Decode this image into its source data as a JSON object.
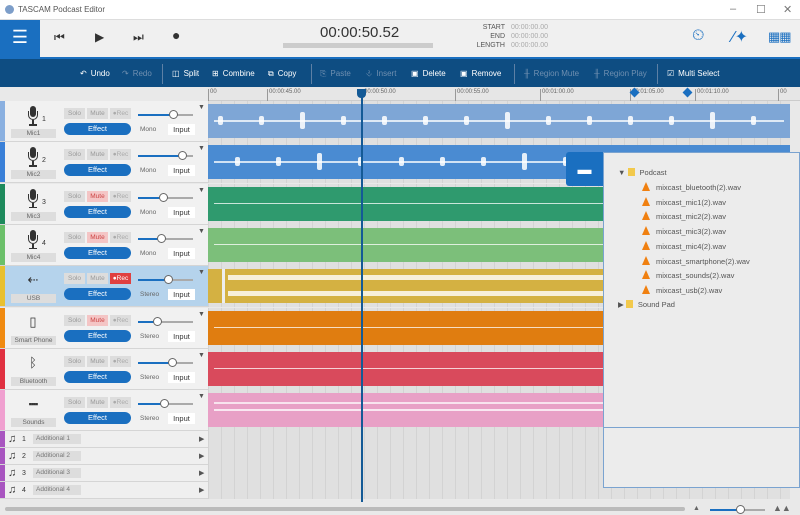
{
  "window": {
    "title": "TASCAM Podcast Editor",
    "minimize": "–",
    "maximize": "☐",
    "close": "✕"
  },
  "transport": {
    "time": "00:00:50.52",
    "start_label": "START",
    "end_label": "END",
    "length_label": "LENGTH",
    "start": "00:00:00.00",
    "end": "00:00:00.00",
    "length": "00:00:00.00"
  },
  "toolbar": {
    "undo": "Undo",
    "redo": "Redo",
    "split": "Split",
    "combine": "Combine",
    "copy": "Copy",
    "paste": "Paste",
    "insert": "Insert",
    "delete": "Delete",
    "remove": "Remove",
    "region_mute": "Region Mute",
    "region_play": "Region Play",
    "multi_select": "Multi Select"
  },
  "ruler": [
    "00",
    "00:00:45.00",
    "00:00:50.00",
    "00:00:55.00",
    "00:01:00.00",
    "00:01:05.00",
    "00:01:10.00",
    "00"
  ],
  "labels": {
    "solo": "Solo",
    "mute": "Mute",
    "rec": "●Rec",
    "effect": "Effect",
    "input": "Input"
  },
  "tracks": [
    {
      "name": "Mic1",
      "num": "1",
      "icon": "mic",
      "mode": "Mono",
      "volume": 0.64,
      "mute": false,
      "rec": false,
      "color": "#7ea6d6",
      "stripe": "#8ab0e0",
      "clip": true
    },
    {
      "name": "Mic2",
      "num": "2",
      "icon": "mic",
      "mode": "Mono",
      "volume": 0.8,
      "mute": false,
      "rec": false,
      "color": "#4a8bd2",
      "stripe": "#3a80d8",
      "clip": true
    },
    {
      "name": "Mic3",
      "num": "3",
      "icon": "mic",
      "mode": "Mono",
      "volume": 0.45,
      "mute": true,
      "rec": false,
      "color": "#2f9a6e",
      "stripe": "#1e8a5c",
      "clip": true
    },
    {
      "name": "Mic4",
      "num": "4",
      "icon": "mic",
      "mode": "Mono",
      "volume": 0.42,
      "mute": true,
      "rec": false,
      "color": "#7cbf7a",
      "stripe": "#6cc06a",
      "clip": true
    },
    {
      "name": "USB",
      "num": "",
      "icon": "usb",
      "mode": "Stereo",
      "volume": 0.54,
      "mute": false,
      "rec": true,
      "color": "#d4b142",
      "stripe": "#e8c030",
      "clip": true
    },
    {
      "name": "Smart Phone",
      "num": "",
      "icon": "phone",
      "mode": "Stereo",
      "volume": 0.35,
      "mute": true,
      "rec": false,
      "color": "#e07d10",
      "stripe": "#f08a10",
      "clip": true
    },
    {
      "name": "Bluetooth",
      "num": "",
      "icon": "bluetooth",
      "mode": "Stereo",
      "volume": 0.62,
      "mute": false,
      "rec": false,
      "color": "#d94a5c",
      "stripe": "#e03040",
      "clip": true
    },
    {
      "name": "Sounds",
      "num": "",
      "icon": "grid",
      "mode": "Stereo",
      "volume": 0.48,
      "mute": false,
      "rec": false,
      "color": "#e8a0c6",
      "stripe": "#f0a0d0",
      "clip": true
    }
  ],
  "additional": [
    {
      "num": "1",
      "name": "Additional 1"
    },
    {
      "num": "2",
      "name": "Additional 2"
    },
    {
      "num": "3",
      "name": "Additional 3"
    },
    {
      "num": "4",
      "name": "Additional 4"
    }
  ],
  "file_browser": {
    "folder": "Podcast",
    "files": [
      "mixcast_bluetooth(2).wav",
      "mixcast_mic1(2).wav",
      "mixcast_mic2(2).wav",
      "mixcast_mic3(2).wav",
      "mixcast_mic4(2).wav",
      "mixcast_smartphone(2).wav",
      "mixcast_sounds(2).wav",
      "mixcast_usb(2).wav"
    ],
    "folder2": "Sound Pad"
  },
  "zoom_level": 0.55
}
